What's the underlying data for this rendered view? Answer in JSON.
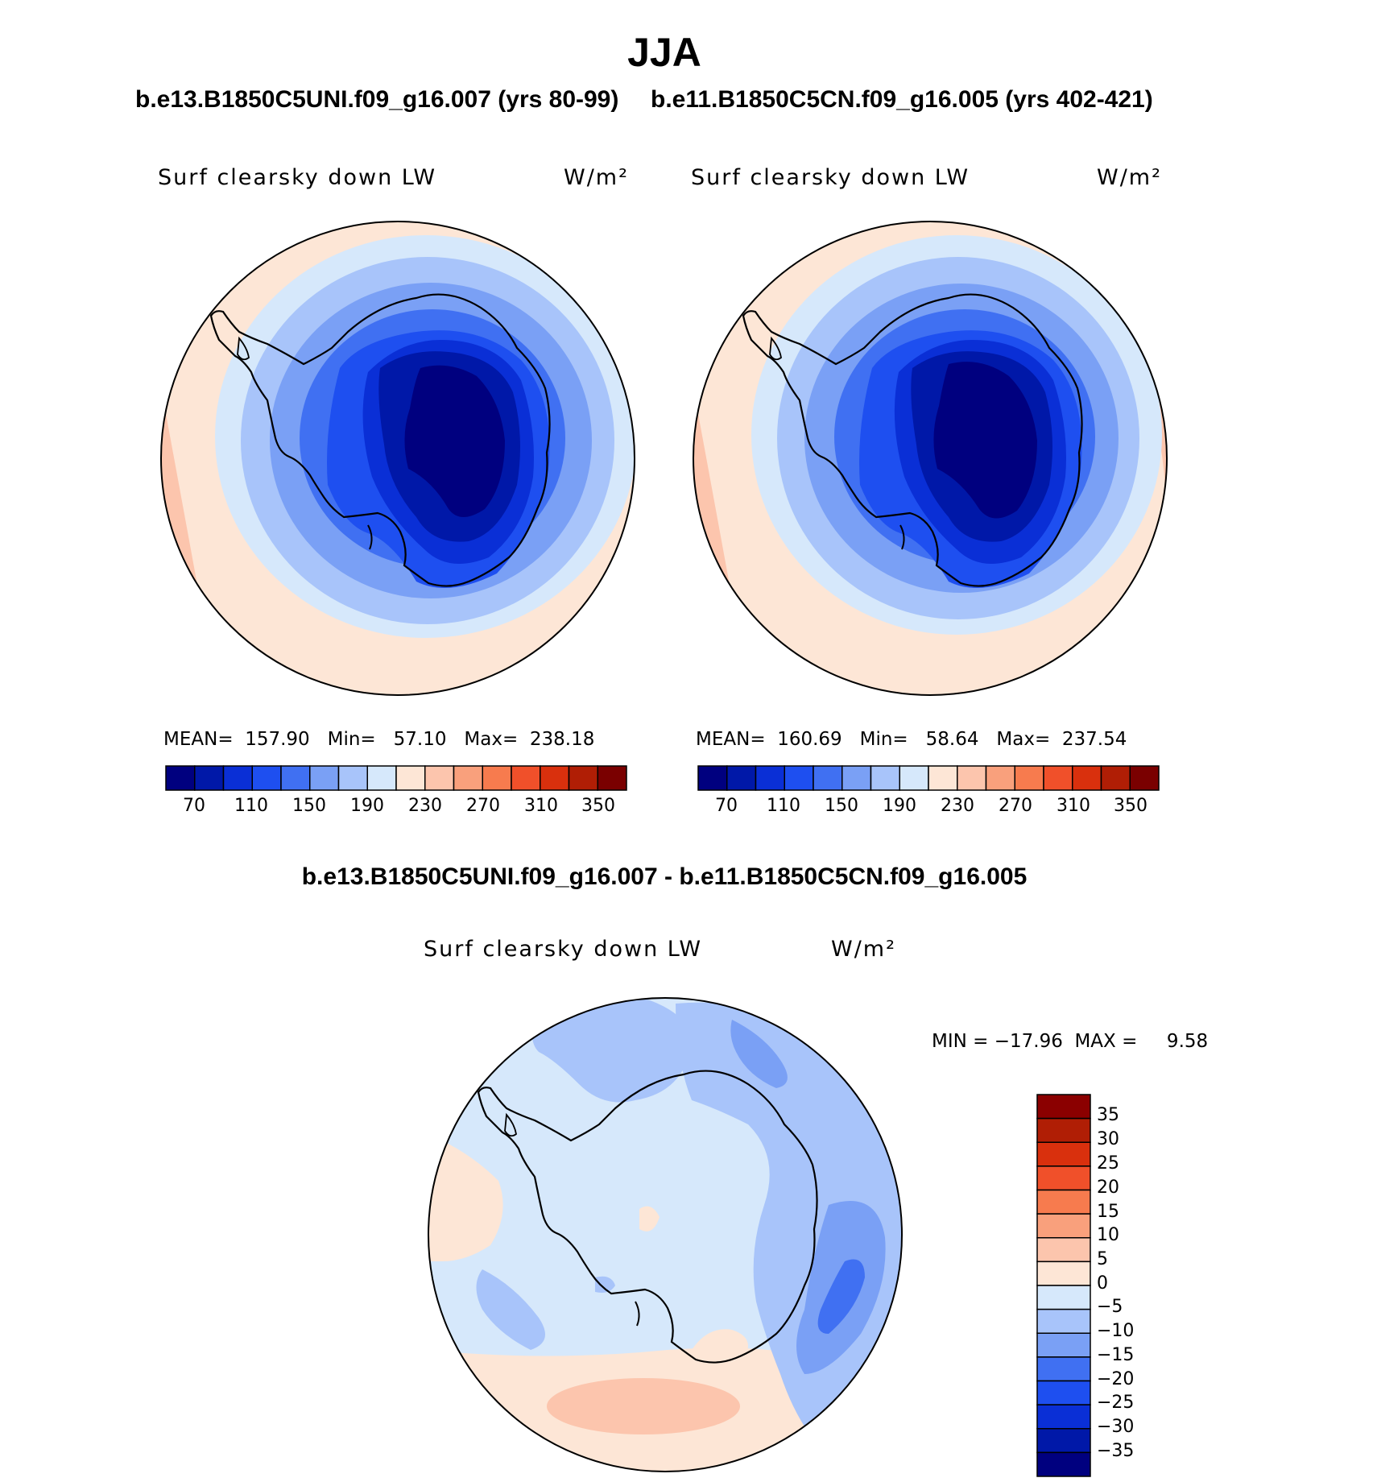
{
  "title": "JJA",
  "panels": {
    "left": {
      "case": "b.e13.B1850C5UNI.f09_g16.007 (yrs 80-99)",
      "variable": "Surf clearsky down LW",
      "units": "W/m²",
      "stats": "MEAN=  157.90   Min=   57.10   Max=  238.18",
      "colorbar_ticks": [
        "70",
        "110",
        "150",
        "190",
        "230",
        "270",
        "310",
        "350"
      ]
    },
    "right": {
      "case": "b.e11.B1850C5CN.f09_g16.005 (yrs 402-421)",
      "variable": "Surf clearsky down LW",
      "units": "W/m²",
      "stats": "MEAN=  160.69   Min=   58.64   Max=  237.54",
      "colorbar_ticks": [
        "70",
        "110",
        "150",
        "190",
        "230",
        "270",
        "310",
        "350"
      ]
    },
    "diff": {
      "case": "b.e13.B1850C5UNI.f09_g16.007 - b.e11.B1850C5CN.f09_g16.005",
      "variable": "Surf clearsky down LW",
      "units": "W/m²",
      "stats": "MIN = −17.96  MAX =     9.58",
      "colorbar_ticks": [
        "35",
        "30",
        "25",
        "20",
        "15",
        "10",
        "5",
        "0",
        "−5",
        "−10",
        "−15",
        "−20",
        "−25",
        "−30",
        "−35"
      ]
    }
  },
  "colors": {
    "field_scale": [
      "#00007f",
      "#0018a8",
      "#0a2fd6",
      "#1e4ff0",
      "#4070f2",
      "#7aa0f5",
      "#a8c4fa",
      "#d6e8fb",
      "#fde6d6",
      "#fcc5ad",
      "#f9a07c",
      "#f77b4e",
      "#f0502a",
      "#d9300d",
      "#b01e05",
      "#7a0000"
    ],
    "diff_scale": [
      "#8b0000",
      "#b01e05",
      "#d9300d",
      "#f0502a",
      "#f77b4e",
      "#f9a07c",
      "#fcc5ad",
      "#fde6d6",
      "#d6e8fb",
      "#a8c4fa",
      "#7aa0f5",
      "#4070f2",
      "#1e4ff0",
      "#0a2fd6",
      "#0018a8",
      "#00007f"
    ]
  }
}
